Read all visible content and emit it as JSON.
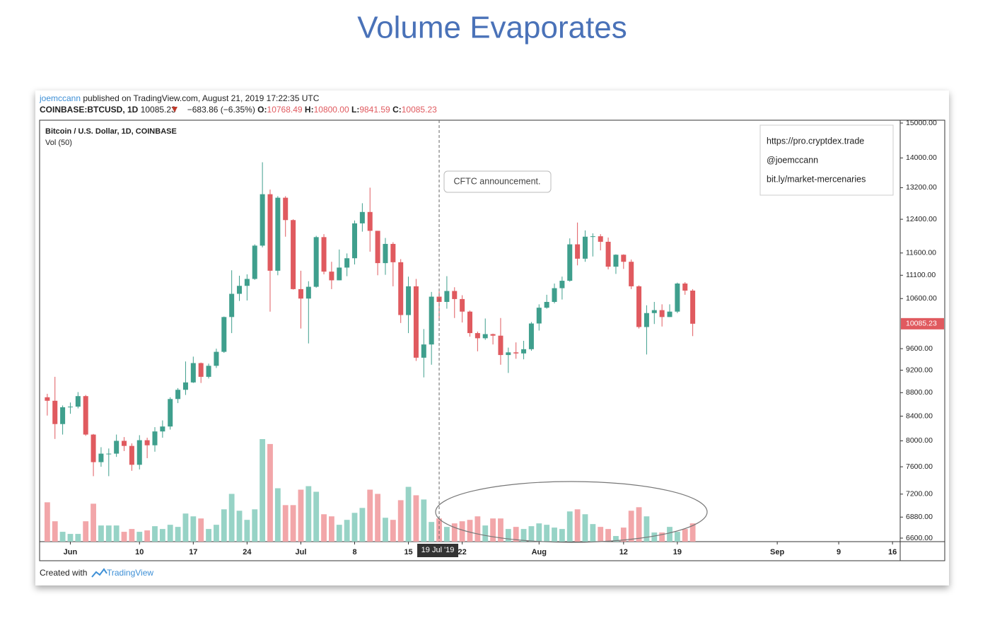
{
  "slide_title": "Volume Evaporates",
  "header": {
    "author": "joemccann",
    "published": "published on TradingView.com, August 21, 2019 17:22:35 UTC",
    "symbol": "COINBASE:BTCUSD, 1D",
    "last": "10085.23",
    "change": "−683.86 (−6.35%)",
    "o_label": "O:",
    "o": "10768.49",
    "h_label": "H:",
    "h": "10800.00",
    "l_label": "L:",
    "l": "9841.59",
    "c_label": "C:",
    "c": "10085.23"
  },
  "footer": {
    "created": "Created with",
    "brand": "TradingView"
  },
  "chart_data": {
    "type": "candlestick",
    "title": "Bitcoin / U.S. Dollar, 1D, COINBASE",
    "subtitle": "Vol (50)",
    "x": [
      "2019-05-29",
      "2019-05-30",
      "2019-05-31",
      "2019-06-01",
      "2019-06-02",
      "2019-06-03",
      "2019-06-04",
      "2019-06-05",
      "2019-06-06",
      "2019-06-07",
      "2019-06-08",
      "2019-06-09",
      "2019-06-10",
      "2019-06-11",
      "2019-06-12",
      "2019-06-13",
      "2019-06-14",
      "2019-06-15",
      "2019-06-16",
      "2019-06-17",
      "2019-06-18",
      "2019-06-19",
      "2019-06-20",
      "2019-06-21",
      "2019-06-22",
      "2019-06-23",
      "2019-06-24",
      "2019-06-25",
      "2019-06-26",
      "2019-06-27",
      "2019-06-28",
      "2019-06-29",
      "2019-06-30",
      "2019-07-01",
      "2019-07-02",
      "2019-07-03",
      "2019-07-04",
      "2019-07-05",
      "2019-07-06",
      "2019-07-07",
      "2019-07-08",
      "2019-07-09",
      "2019-07-10",
      "2019-07-11",
      "2019-07-12",
      "2019-07-13",
      "2019-07-14",
      "2019-07-15",
      "2019-07-16",
      "2019-07-17",
      "2019-07-18",
      "2019-07-19",
      "2019-07-20",
      "2019-07-21",
      "2019-07-22",
      "2019-07-23",
      "2019-07-24",
      "2019-07-25",
      "2019-07-26",
      "2019-07-27",
      "2019-07-28",
      "2019-07-29",
      "2019-07-30",
      "2019-07-31",
      "2019-08-01",
      "2019-08-02",
      "2019-08-03",
      "2019-08-04",
      "2019-08-05",
      "2019-08-06",
      "2019-08-07",
      "2019-08-08",
      "2019-08-09",
      "2019-08-10",
      "2019-08-11",
      "2019-08-12",
      "2019-08-13",
      "2019-08-14",
      "2019-08-15",
      "2019-08-16",
      "2019-08-17",
      "2019-08-18",
      "2019-08-19",
      "2019-08-20",
      "2019-08-21"
    ],
    "open": [
      8720,
      8660,
      8270,
      8550,
      8560,
      8740,
      8100,
      7670,
      7800,
      7800,
      8000,
      7920,
      7630,
      8010,
      7930,
      8150,
      8230,
      8690,
      8850,
      8980,
      9330,
      9080,
      9280,
      9540,
      10220,
      10700,
      10870,
      11020,
      11770,
      13030,
      11200,
      12940,
      12380,
      10800,
      10600,
      10850,
      11970,
      11180,
      10990,
      11270,
      11480,
      12300,
      12580,
      12120,
      11370,
      11810,
      11390,
      10260,
      10860,
      9430,
      9680,
      10640,
      10530,
      10760,
      10590,
      10330,
      9900,
      9800,
      9880,
      9850,
      9480,
      9530,
      9510,
      9590,
      10090,
      10410,
      10530,
      10820,
      10980,
      11800,
      11470,
      11980,
      11990,
      11860,
      11290,
      11560,
      11400,
      10860,
      10020,
      10300,
      10360,
      10220,
      10330,
      10920,
      10768.49
    ],
    "high": [
      8780,
      9080,
      8580,
      8630,
      8810,
      8760,
      8110,
      7900,
      7880,
      8100,
      8060,
      7960,
      8090,
      8050,
      8220,
      8330,
      8720,
      8880,
      9360,
      9450,
      9340,
      9320,
      9600,
      10230,
      11210,
      11090,
      11120,
      11800,
      13880,
      13150,
      12980,
      12980,
      12400,
      11200,
      10970,
      12000,
      12040,
      11400,
      11680,
      11590,
      12370,
      12800,
      13200,
      12120,
      11950,
      11850,
      11460,
      11070,
      11020,
      9980,
      10740,
      10750,
      11080,
      10840,
      10670,
      10350,
      9930,
      10190,
      9890,
      10200,
      9620,
      9720,
      9750,
      10120,
      10480,
      10680,
      10920,
      11070,
      11940,
      12320,
      12130,
      12060,
      12040,
      11960,
      11570,
      11570,
      11450,
      10880,
      10460,
      10530,
      10480,
      10480,
      10940,
      10950,
      10800
    ],
    "low": [
      8410,
      8030,
      8100,
      8440,
      8530,
      8080,
      7460,
      7600,
      7460,
      7750,
      7840,
      7540,
      7560,
      7730,
      7830,
      8050,
      8180,
      8620,
      8760,
      8970,
      8970,
      9050,
      9240,
      9520,
      9900,
      10550,
      10560,
      11000,
      11730,
      10330,
      11100,
      11980,
      10790,
      9990,
      9700,
      10830,
      11120,
      10800,
      10990,
      11080,
      11340,
      12100,
      11630,
      11100,
      11110,
      10860,
      10100,
      9900,
      9370,
      9070,
      9300,
      10150,
      10390,
      10200,
      10110,
      9830,
      9550,
      9770,
      9680,
      9300,
      9150,
      9410,
      9400,
      9560,
      9950,
      10390,
      10500,
      10580,
      10960,
      11320,
      11400,
      11520,
      11660,
      11230,
      11130,
      11240,
      10800,
      9990,
      9490,
      10080,
      10030,
      10220,
      10300,
      10680,
      9841.59
    ],
    "close": [
      8660,
      8270,
      8550,
      8560,
      8740,
      8100,
      7670,
      7800,
      7800,
      8000,
      7920,
      7630,
      8010,
      7930,
      8150,
      8230,
      8690,
      8850,
      8980,
      9330,
      9080,
      9280,
      9540,
      10220,
      10700,
      10870,
      11020,
      11770,
      13030,
      11200,
      12940,
      12380,
      10800,
      10600,
      10850,
      11970,
      11180,
      10990,
      11270,
      11480,
      12300,
      12580,
      12120,
      11370,
      11810,
      11390,
      10260,
      10860,
      9430,
      9680,
      10640,
      10530,
      10760,
      10590,
      10330,
      9900,
      9800,
      9880,
      9850,
      9480,
      9530,
      9510,
      9590,
      10090,
      10410,
      10530,
      10820,
      10980,
      11800,
      11470,
      11980,
      11990,
      11860,
      11290,
      11560,
      11400,
      10860,
      10020,
      10300,
      10360,
      10220,
      10330,
      10920,
      10768.49,
      10085.23
    ],
    "volume": [
      56,
      29,
      14,
      11,
      11,
      29,
      54,
      23,
      23,
      23,
      14,
      18,
      14,
      16,
      22,
      18,
      24,
      21,
      40,
      36,
      33,
      18,
      24,
      46,
      68,
      44,
      31,
      46,
      146,
      139,
      76,
      52,
      52,
      74,
      79,
      71,
      39,
      36,
      24,
      31,
      41,
      48,
      74,
      68,
      34,
      31,
      59,
      78,
      66,
      60,
      28,
      33,
      21,
      26,
      29,
      31,
      36,
      23,
      33,
      33,
      18,
      21,
      18,
      22,
      26,
      24,
      20,
      18,
      43,
      46,
      39,
      25,
      21,
      18,
      8,
      20,
      44,
      49,
      36,
      13,
      13,
      21,
      14,
      18,
      26
    ],
    "volume_lim": [
      0,
      600
    ],
    "up_color": "#3f9f8d",
    "down_color": "#e05a5f",
    "volume_up_color": "#97d3c6",
    "volume_down_color": "#f2a6a9",
    "log_scale": true,
    "ylim": [
      6600,
      15000
    ],
    "yticks": [
      {
        "value": 15000,
        "label": "15000.00"
      },
      {
        "value": 14000,
        "label": "14000.00"
      },
      {
        "value": 13200,
        "label": "13200.00"
      },
      {
        "value": 12400,
        "label": "12400.00"
      },
      {
        "value": 11600,
        "label": "11600.00"
      },
      {
        "value": 11100,
        "label": "11100.00"
      },
      {
        "value": 10600,
        "label": "10600.00"
      },
      {
        "value": 9600,
        "label": "9600.00"
      },
      {
        "value": 9200,
        "label": "9200.00"
      },
      {
        "value": 8800,
        "label": "8800.00"
      },
      {
        "value": 8400,
        "label": "8400.00"
      },
      {
        "value": 8000,
        "label": "8000.00"
      },
      {
        "value": 7600,
        "label": "7600.00"
      },
      {
        "value": 7200,
        "label": "7200.00"
      },
      {
        "value": 6880,
        "label": "6880.00"
      },
      {
        "value": 6600,
        "label": "6600.00"
      }
    ],
    "xlim": [
      "2019-05-28",
      "2019-09-17"
    ],
    "xticks": [
      {
        "value": "2019-06-01",
        "label": "Jun"
      },
      {
        "value": "2019-06-10",
        "label": "10"
      },
      {
        "value": "2019-06-17",
        "label": "17"
      },
      {
        "value": "2019-06-24",
        "label": "24"
      },
      {
        "value": "2019-07-01",
        "label": "Jul"
      },
      {
        "value": "2019-07-08",
        "label": "8"
      },
      {
        "value": "2019-07-15",
        "label": "15"
      },
      {
        "value": "2019-07-22",
        "label": "22"
      },
      {
        "value": "2019-08-01",
        "label": "Aug"
      },
      {
        "value": "2019-08-12",
        "label": "12"
      },
      {
        "value": "2019-08-19",
        "label": "19"
      },
      {
        "value": "2019-09-01",
        "label": "Sep"
      },
      {
        "value": "2019-09-09",
        "label": "9"
      },
      {
        "value": "2019-09-16",
        "label": "16"
      }
    ],
    "last_price": {
      "value": 10085.23,
      "label": "10085.23"
    },
    "crosshair": {
      "value": "2019-07-19",
      "label": "19 Jul '19"
    },
    "annotation": "CFTC announcement.",
    "info_lines": [
      "https://pro.cryptdex.trade",
      "@joemccann",
      "bit.ly/market-mercenaries"
    ]
  }
}
